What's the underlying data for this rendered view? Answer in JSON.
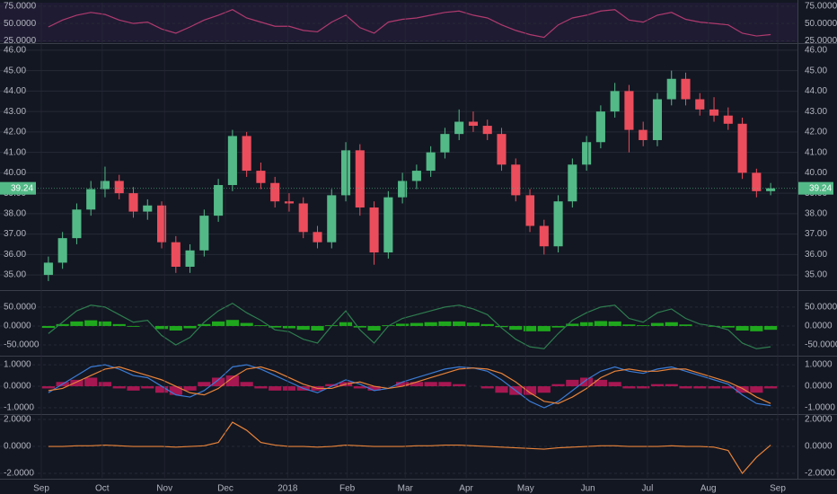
{
  "chart_data": [
    {
      "type": "line",
      "ylim": [
        23,
        80
      ],
      "xlim": [
        0,
        52
      ],
      "yticks": [
        {
          "value": 25,
          "label": "25.0000"
        },
        {
          "value": 50,
          "label": "50.0000"
        },
        {
          "value": 75,
          "label": "75.0000"
        }
      ],
      "grid": true,
      "background": "#1f1b33",
      "series": [
        {
          "color": "#b03a6e",
          "values": [
            45,
            55,
            62,
            66,
            63,
            55,
            50,
            52,
            42,
            36,
            45,
            55,
            62,
            70,
            58,
            52,
            46,
            46,
            40,
            38,
            52,
            62,
            44,
            36,
            52,
            56,
            58,
            62,
            66,
            68,
            62,
            58,
            48,
            40,
            34,
            30,
            48,
            58,
            62,
            68,
            70,
            55,
            52,
            62,
            66,
            56,
            52,
            50,
            48,
            36,
            32,
            34
          ]
        }
      ]
    },
    {
      "type": "candlestick",
      "ylim": [
        34.3,
        46.26
      ],
      "xlim": [
        0,
        52
      ],
      "grid": true,
      "background": "#131722",
      "up_color": "#53b987",
      "down_color": "#eb4d5c",
      "yticks": [
        {
          "value": 35,
          "label": "35.00"
        },
        {
          "value": 36,
          "label": "36.00"
        },
        {
          "value": 37,
          "label": "37.00"
        },
        {
          "value": 38,
          "label": "38.00"
        },
        {
          "value": 39,
          "label": "39.00"
        },
        {
          "value": 40,
          "label": "40.00"
        },
        {
          "value": 41,
          "label": "41.00"
        },
        {
          "value": 42,
          "label": "42.00"
        },
        {
          "value": 43,
          "label": "43.00"
        },
        {
          "value": 44,
          "label": "44.00"
        },
        {
          "value": 45,
          "label": "45.00"
        },
        {
          "value": 46,
          "label": "46.00"
        }
      ],
      "open": [
        35.0,
        35.6,
        36.8,
        38.2,
        39.2,
        39.6,
        39.0,
        38.1,
        38.4,
        36.6,
        35.4,
        36.2,
        37.9,
        39.4,
        41.8,
        40.1,
        39.5,
        38.6,
        38.5,
        37.1,
        36.6,
        38.9,
        41.1,
        38.3,
        36.1,
        38.8,
        39.6,
        40.1,
        41.0,
        41.9,
        42.5,
        42.3,
        41.9,
        40.4,
        38.9,
        37.4,
        36.4,
        38.6,
        40.4,
        41.5,
        43.0,
        44.0,
        42.1,
        41.6,
        43.6,
        44.6,
        43.6,
        43.1,
        42.8,
        42.4,
        40.0,
        39.1
      ],
      "high": [
        35.9,
        37.1,
        38.5,
        39.6,
        40.3,
        39.9,
        39.3,
        38.7,
        38.6,
        36.9,
        36.5,
        38.2,
        39.7,
        42.1,
        42.0,
        40.5,
        39.8,
        39.0,
        38.8,
        37.4,
        39.2,
        41.5,
        41.4,
        38.6,
        39.1,
        40.0,
        40.4,
        41.3,
        42.2,
        43.1,
        43.0,
        42.6,
        42.2,
        40.7,
        39.2,
        37.7,
        38.9,
        40.7,
        41.8,
        43.3,
        44.4,
        44.3,
        42.5,
        43.9,
        45.0,
        44.9,
        43.9,
        43.7,
        43.2,
        42.7,
        40.2,
        39.5
      ],
      "low": [
        34.7,
        35.3,
        36.5,
        37.9,
        38.8,
        38.7,
        37.8,
        37.7,
        36.3,
        35.1,
        35.1,
        35.9,
        37.6,
        39.1,
        39.8,
        39.2,
        38.3,
        38.1,
        36.8,
        36.3,
        36.3,
        38.6,
        37.9,
        35.5,
        35.8,
        38.5,
        39.2,
        39.8,
        40.7,
        41.6,
        42.0,
        41.6,
        40.1,
        38.6,
        37.1,
        36.0,
        36.1,
        38.3,
        40.1,
        41.2,
        42.7,
        41.0,
        41.3,
        41.3,
        43.3,
        43.3,
        42.8,
        42.5,
        42.1,
        39.7,
        38.8,
        38.9
      ],
      "close": [
        35.6,
        36.8,
        38.2,
        39.2,
        39.6,
        39.0,
        38.1,
        38.4,
        36.6,
        35.4,
        36.2,
        37.9,
        39.4,
        41.8,
        40.1,
        39.5,
        38.6,
        38.5,
        37.1,
        36.6,
        38.9,
        41.1,
        38.3,
        36.1,
        38.8,
        39.6,
        40.1,
        41.0,
        41.9,
        42.5,
        42.3,
        41.9,
        40.4,
        38.9,
        37.4,
        36.4,
        38.6,
        40.4,
        41.5,
        43.0,
        44.0,
        42.1,
        41.6,
        43.6,
        44.6,
        43.6,
        43.1,
        42.8,
        42.4,
        40.0,
        39.1,
        39.24
      ]
    },
    {
      "type": "line",
      "ylim": [
        -76,
        90
      ],
      "xlim": [
        0,
        52
      ],
      "grid": true,
      "background": "#131722",
      "yticks": [
        {
          "value": -50,
          "label": "-50.0000"
        },
        {
          "value": 0,
          "label": "0.0000"
        },
        {
          "value": 50,
          "label": "50.0000"
        }
      ],
      "series": [
        {
          "color": "#22c21c",
          "style": "histogram",
          "values": [
            -5,
            5,
            12,
            15,
            12,
            5,
            -2,
            0,
            -8,
            -12,
            -6,
            5,
            12,
            16,
            8,
            2,
            -4,
            -6,
            -10,
            -12,
            2,
            10,
            -4,
            -12,
            2,
            6,
            8,
            10,
            12,
            12,
            9,
            5,
            -3,
            -10,
            -14,
            -14,
            -4,
            6,
            10,
            13,
            12,
            4,
            2,
            8,
            10,
            4,
            0,
            -2,
            -4,
            -12,
            -14,
            -10
          ]
        },
        {
          "color": "#2e7d4f",
          "values": [
            -20,
            10,
            40,
            55,
            50,
            30,
            10,
            15,
            -25,
            -50,
            -30,
            10,
            40,
            60,
            35,
            15,
            -10,
            -15,
            -35,
            -45,
            0,
            40,
            -10,
            -45,
            0,
            20,
            30,
            40,
            50,
            55,
            45,
            30,
            -5,
            -35,
            -55,
            -60,
            -20,
            15,
            35,
            50,
            55,
            20,
            10,
            35,
            45,
            20,
            5,
            0,
            -10,
            -45,
            -60,
            -55
          ]
        }
      ]
    },
    {
      "type": "line",
      "ylim": [
        -1.25,
        1.38
      ],
      "xlim": [
        0,
        52
      ],
      "grid": true,
      "background": "#131722",
      "yticks": [
        {
          "value": -1,
          "label": "-1.0000"
        },
        {
          "value": 0,
          "label": "0.0000"
        },
        {
          "value": 1,
          "label": "1.0000"
        }
      ],
      "series": [
        {
          "color": "#c2185b",
          "style": "histogram",
          "values": [
            -0.1,
            0.2,
            0.3,
            0.4,
            0.2,
            -0.1,
            -0.2,
            -0.1,
            -0.3,
            -0.4,
            -0.2,
            0.2,
            0.4,
            0.5,
            0.2,
            -0.1,
            -0.2,
            -0.2,
            -0.2,
            -0.2,
            0.1,
            0.2,
            -0.1,
            -0.2,
            0.0,
            0.2,
            0.2,
            0.2,
            0.2,
            0.1,
            0.0,
            -0.1,
            -0.3,
            -0.4,
            -0.4,
            -0.3,
            0.1,
            0.3,
            0.4,
            0.3,
            0.2,
            -0.1,
            -0.1,
            0.1,
            0.1,
            -0.1,
            -0.1,
            -0.1,
            -0.1,
            -0.3,
            -0.3,
            -0.1
          ]
        },
        {
          "color": "#3a7bd5",
          "values": [
            -0.3,
            0.1,
            0.5,
            0.9,
            1.0,
            0.8,
            0.5,
            0.4,
            0.0,
            -0.4,
            -0.5,
            -0.2,
            0.3,
            0.9,
            1.0,
            0.8,
            0.5,
            0.2,
            -0.1,
            -0.3,
            0.0,
            0.3,
            0.1,
            -0.2,
            -0.1,
            0.2,
            0.4,
            0.6,
            0.8,
            0.9,
            0.85,
            0.7,
            0.3,
            -0.2,
            -0.7,
            -1.0,
            -0.7,
            -0.2,
            0.3,
            0.7,
            0.9,
            0.7,
            0.6,
            0.8,
            0.9,
            0.7,
            0.5,
            0.3,
            0.1,
            -0.4,
            -0.8,
            -0.9
          ]
        },
        {
          "color": "#e8833a",
          "values": [
            -0.2,
            -0.1,
            0.2,
            0.5,
            0.8,
            0.9,
            0.7,
            0.5,
            0.3,
            0.0,
            -0.3,
            -0.4,
            -0.1,
            0.4,
            0.8,
            0.9,
            0.7,
            0.4,
            0.1,
            -0.1,
            -0.1,
            0.1,
            0.2,
            0.0,
            -0.1,
            0.0,
            0.2,
            0.4,
            0.6,
            0.8,
            0.85,
            0.8,
            0.6,
            0.2,
            -0.3,
            -0.7,
            -0.8,
            -0.5,
            -0.1,
            0.4,
            0.7,
            0.8,
            0.7,
            0.7,
            0.8,
            0.8,
            0.6,
            0.4,
            0.2,
            -0.1,
            -0.5,
            -0.8
          ]
        }
      ]
    },
    {
      "type": "line",
      "ylim": [
        -2.33,
        2.27
      ],
      "xlim": [
        0,
        52
      ],
      "grid": true,
      "background": "#131722",
      "yticks": [
        {
          "value": -2,
          "label": "-2.0000"
        },
        {
          "value": 0,
          "label": "0.0000"
        },
        {
          "value": 2,
          "label": "2.0000"
        }
      ],
      "xticks": [
        {
          "value": 0,
          "label": "Sep"
        },
        {
          "value": 4.3,
          "label": "Oct"
        },
        {
          "value": 8.7,
          "label": "Nov"
        },
        {
          "value": 13,
          "label": "Dec"
        },
        {
          "value": 17.4,
          "label": "2018"
        },
        {
          "value": 21.6,
          "label": "Feb"
        },
        {
          "value": 25.7,
          "label": "Mar"
        },
        {
          "value": 30,
          "label": "Apr"
        },
        {
          "value": 34.2,
          "label": "May"
        },
        {
          "value": 38.6,
          "label": "Jun"
        },
        {
          "value": 42.8,
          "label": "Jul"
        },
        {
          "value": 47.1,
          "label": "Aug"
        },
        {
          "value": 52,
          "label": "Sep"
        }
      ],
      "series": [
        {
          "color": "#e8833a",
          "values": [
            0,
            0,
            0.05,
            0.05,
            0.1,
            0.05,
            0,
            0,
            0,
            -0.05,
            0,
            0.05,
            0.3,
            1.8,
            1.2,
            0.3,
            0.1,
            0,
            0,
            -0.05,
            0,
            0.1,
            0.05,
            0,
            0,
            0,
            0.05,
            0.05,
            0.1,
            0.1,
            0.05,
            0,
            -0.05,
            -0.1,
            -0.15,
            -0.2,
            -0.1,
            -0.05,
            0,
            0.05,
            0.05,
            0,
            0,
            0,
            0.05,
            0,
            0,
            -0.05,
            -0.3,
            -2.0,
            -0.8,
            0.1
          ]
        }
      ]
    }
  ]
}
